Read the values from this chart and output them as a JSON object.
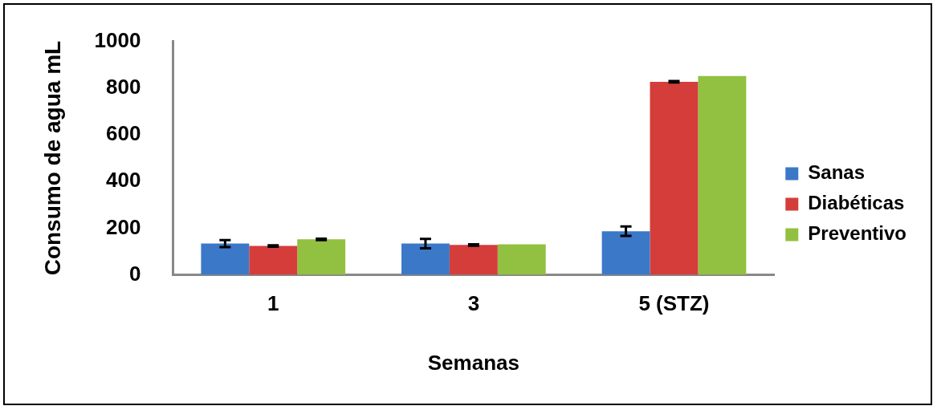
{
  "chart_data": {
    "type": "bar",
    "xlabel": "Semanas",
    "ylabel": "Consumo de agua mL",
    "categories": [
      "1",
      "3",
      "5 (STZ)"
    ],
    "series": [
      {
        "name": "Sanas",
        "color": "#3c78c8",
        "values": [
          134,
          134,
          187
        ],
        "errors": [
          15,
          20,
          20
        ]
      },
      {
        "name": "Diabéticas",
        "color": "#d43d3a",
        "values": [
          124,
          128,
          827
        ],
        "errors": [
          3,
          3,
          3
        ]
      },
      {
        "name": "Preventivo",
        "color": "#92c040",
        "values": [
          152,
          131,
          852
        ],
        "errors": [
          3,
          null,
          null
        ]
      }
    ],
    "ylim": [
      0,
      1000
    ],
    "yticks": [
      0,
      200,
      400,
      600,
      800,
      1000
    ],
    "grid": false,
    "legend": "right"
  }
}
